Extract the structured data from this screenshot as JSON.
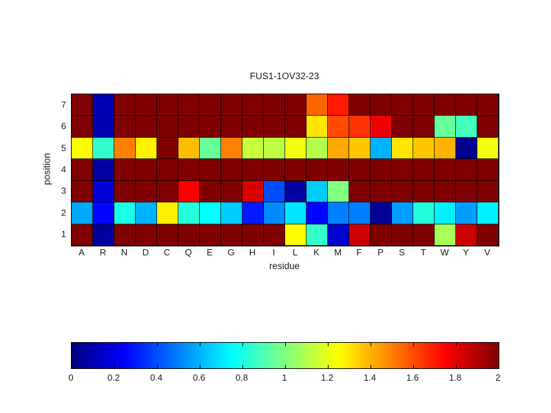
{
  "chart_data": {
    "type": "heatmap",
    "title": "FUS1-1OV32-23",
    "xlabel": "residue",
    "ylabel": "position",
    "colormap": "jet",
    "clim": [
      0,
      2
    ],
    "grid": true,
    "x_categories": [
      "A",
      "R",
      "N",
      "D",
      "C",
      "Q",
      "E",
      "G",
      "H",
      "I",
      "L",
      "K",
      "M",
      "F",
      "P",
      "S",
      "T",
      "W",
      "Y",
      "V"
    ],
    "rows": [
      {
        "position": "7",
        "values": [
          2,
          0.1,
          2,
          2,
          2,
          2,
          2,
          2,
          2,
          2,
          2,
          1.55,
          1.7,
          2,
          2,
          2,
          2,
          2,
          2,
          2
        ]
      },
      {
        "position": "6",
        "values": [
          2,
          0.1,
          2,
          2,
          2,
          2,
          2,
          2,
          2,
          2,
          2,
          1.3,
          1.6,
          1.65,
          1.78,
          2,
          2,
          0.95,
          0.88,
          2
        ]
      },
      {
        "position": "5",
        "values": [
          1.25,
          0.85,
          1.5,
          1.28,
          2,
          1.38,
          0.95,
          1.5,
          1.14,
          1.12,
          1.22,
          1.1,
          1.42,
          1.36,
          0.6,
          1.3,
          1.36,
          1.4,
          0.03,
          1.22
        ]
      },
      {
        "position": "4",
        "values": [
          2,
          0.06,
          2,
          2,
          2,
          2,
          2,
          2,
          2,
          2,
          2,
          2,
          2,
          2,
          2,
          2,
          2,
          2,
          2,
          2
        ]
      },
      {
        "position": "3",
        "values": [
          2,
          0.17,
          2,
          2,
          2,
          1.75,
          2,
          2,
          1.82,
          0.4,
          0.06,
          0.65,
          1.0,
          2,
          2,
          2,
          2,
          2,
          2,
          2
        ]
      },
      {
        "position": "2",
        "values": [
          0.58,
          0.26,
          0.8,
          0.6,
          1.28,
          0.82,
          0.75,
          0.65,
          0.3,
          0.52,
          0.7,
          0.26,
          0.5,
          0.5,
          0.04,
          0.56,
          0.82,
          0.72,
          0.56,
          0.72
        ]
      },
      {
        "position": "1",
        "values": [
          2,
          0.06,
          2,
          2,
          2,
          2,
          2,
          2,
          2,
          2,
          1.25,
          0.85,
          0.15,
          1.85,
          2,
          2,
          2,
          1.08,
          1.85,
          2
        ]
      }
    ],
    "colorbar": {
      "tick_labels": [
        "0",
        "0.2",
        "0.4",
        "0.6",
        "0.8",
        "1",
        "1.2",
        "1.4",
        "1.6",
        "1.8",
        "2"
      ],
      "tick_values": [
        0,
        0.2,
        0.4,
        0.6,
        0.8,
        1,
        1.2,
        1.4,
        1.6,
        1.8,
        2
      ]
    }
  }
}
